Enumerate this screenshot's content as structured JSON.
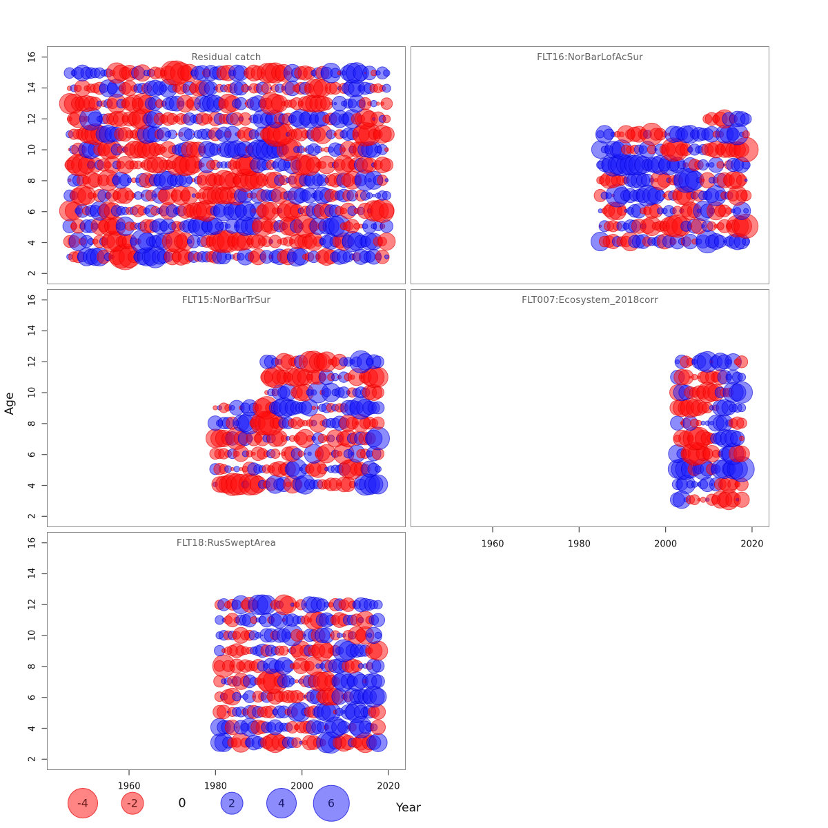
{
  "figure": {
    "xlabel": "Year",
    "ylabel": "Age",
    "x_tick_labels": [
      "1960",
      "1980",
      "2000",
      "2020"
    ],
    "y_tick_labels": [
      "2",
      "4",
      "6",
      "8",
      "10",
      "12",
      "14",
      "16"
    ]
  },
  "chart_data": {
    "type": "scatter",
    "subtype": "bubble-residuals-by-age-and-year",
    "xlabel": "Year",
    "ylabel": "Age",
    "x_ticks": [
      1960,
      1980,
      2000,
      2020
    ],
    "y_ticks": [
      2,
      4,
      6,
      8,
      10,
      12,
      14,
      16
    ],
    "x_domain": [
      1941,
      2024
    ],
    "y_domain": [
      1.3,
      16.7
    ],
    "legend_position": "bottom",
    "grid": "off",
    "value_encoding": "circle area ~ |residual|; red = negative residual, blue = positive residual",
    "radius_scale_px_per_sqrt_unit": 9.5,
    "residual_value_range": [
      -4.3,
      4.3
    ],
    "panels": [
      {
        "title": "Residual catch",
        "grid_pos": {
          "row": 0,
          "col": 0
        },
        "seed": 101,
        "rows": [
          {
            "age_min": 3,
            "age_max": 15,
            "year_min": 1946,
            "year_max": 2020
          }
        ]
      },
      {
        "title": "FLT16:NorBarLofAcSur",
        "grid_pos": {
          "row": 0,
          "col": 1
        },
        "seed": 202,
        "rows": [
          {
            "age_min": 4,
            "age_max": 11,
            "year_min": 1985,
            "year_max": 2019
          },
          {
            "age_min": 12,
            "age_max": 12,
            "year_min": 2010,
            "year_max": 2019
          }
        ]
      },
      {
        "title": "FLT15:NorBarTrSur",
        "grid_pos": {
          "row": 1,
          "col": 0
        },
        "seed": 303,
        "rows": [
          {
            "age_min": 4,
            "age_max": 9,
            "year_min": 1980,
            "year_max": 2018
          },
          {
            "age_min": 10,
            "age_max": 12,
            "year_min": 1992,
            "year_max": 2018
          }
        ]
      },
      {
        "title": "FLT007:Ecosystem_2018corr",
        "grid_pos": {
          "row": 1,
          "col": 1
        },
        "seed": 404,
        "rows": [
          {
            "age_min": 3,
            "age_max": 12,
            "year_min": 2003,
            "year_max": 2018
          }
        ]
      },
      {
        "title": "FLT18:RusSweptArea",
        "grid_pos": {
          "row": 2,
          "col": 0
        },
        "seed": 505,
        "rows": [
          {
            "age_min": 3,
            "age_max": 12,
            "year_min": 1981,
            "year_max": 2018
          }
        ]
      }
    ]
  },
  "legend": {
    "items": [
      {
        "label": "-4",
        "value": -4
      },
      {
        "label": "-2",
        "value": -2
      },
      {
        "label": "0",
        "value": 0
      },
      {
        "label": "2",
        "value": 2
      },
      {
        "label": "4",
        "value": 4
      },
      {
        "label": "6",
        "value": 6
      }
    ]
  },
  "colors": {
    "negative_fill": "rgba(255,10,10,0.5)",
    "negative_stroke": "rgba(225,0,0,0.6)",
    "positive_fill": "rgba(25,25,250,0.5)",
    "positive_stroke": "rgba(0,0,215,0.6)",
    "panel_border": "#8a8a8a",
    "title_text": "#636363",
    "axis_text": "#111111",
    "tick_stroke": "#555555",
    "legend_negative_text": "#6b1b1b",
    "legend_positive_text": "#1b1b6e"
  }
}
